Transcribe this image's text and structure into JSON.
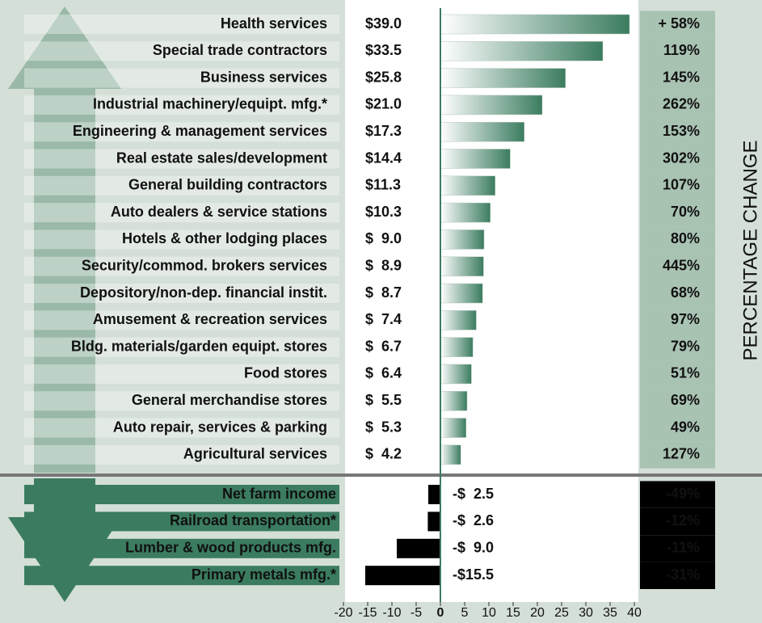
{
  "chart_data": {
    "type": "bar",
    "orientation": "horizontal",
    "categories": [
      "Health services",
      "Special trade contractors",
      "Business services",
      "Industrial machinery/equipt. mfg.*",
      "Engineering & management services",
      "Real estate sales/development",
      "General building contractors",
      "Auto dealers & service stations",
      "Hotels & other lodging places",
      "Security/commod. brokers services",
      "Depository/non-dep. financial instit.",
      "Amusement & recreation services",
      "Bldg. materials/garden equipt. stores",
      "Food stores",
      "General merchandise stores",
      "Auto repair, services & parking",
      "Agricultural services",
      "Net farm income",
      "Railroad transportation*",
      "Lumber & wood products mfg.",
      "Primary metals mfg.*"
    ],
    "values": [
      39.0,
      33.5,
      25.8,
      21.0,
      17.3,
      14.4,
      11.3,
      10.3,
      9.0,
      8.9,
      8.7,
      7.4,
      6.7,
      6.4,
      5.5,
      5.3,
      4.2,
      -2.5,
      -2.6,
      -9.0,
      -15.5
    ],
    "value_labels": [
      "$39.0",
      "$33.5",
      "$25.8",
      "$21.0",
      "$17.3",
      "$14.4",
      "$11.3",
      "$10.3",
      "$  9.0",
      "$  8.9",
      "$  8.7",
      "$  7.4",
      "$  6.7",
      "$  6.4",
      "$  5.5",
      "$  5.3",
      "$  4.2",
      "-$  2.5",
      "-$  2.6",
      "-$  9.0",
      "-$15.5"
    ],
    "color": "#3b7c60",
    "negative_color": "#000000",
    "percent_change": {
      "label": "PERCENTAGE CHANGE",
      "values": [
        58,
        119,
        145,
        262,
        153,
        302,
        107,
        70,
        80,
        445,
        68,
        97,
        79,
        51,
        69,
        49,
        127,
        -49,
        -12,
        -11,
        -31
      ],
      "value_labels": [
        "+ 58%",
        "119%",
        "145%",
        "262%",
        "153%",
        "302%",
        "107%",
        "70%",
        "80%",
        "445%",
        "68%",
        "97%",
        "79%",
        "51%",
        "69%",
        "49%",
        "127%",
        "-49%",
        "-12%",
        "-11%",
        "-31%"
      ]
    },
    "xlim": [
      -20,
      40
    ],
    "xticks": [
      -20,
      -15,
      -10,
      -5,
      0,
      5,
      10,
      15,
      20,
      25,
      30,
      35,
      40
    ]
  }
}
